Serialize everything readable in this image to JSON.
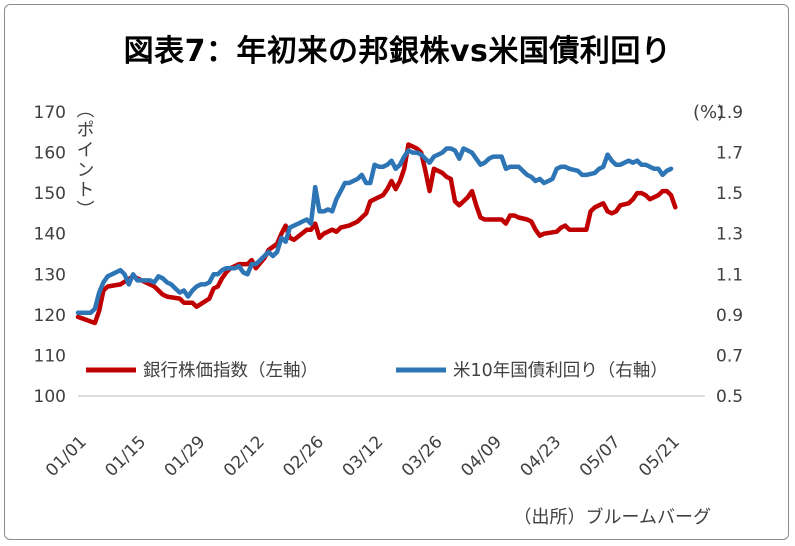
{
  "chart_data": {
    "type": "line",
    "title": "図表7：年初来の邦銀株vs米国債利回り",
    "source": "（出所）ブルームバーグ",
    "y_left": {
      "label": "（ポイント）",
      "ylim": [
        100,
        170
      ],
      "ticks": [
        "170",
        "160",
        "150",
        "140",
        "130",
        "120",
        "110",
        "100"
      ]
    },
    "y_right": {
      "label": "(%)",
      "ylim": [
        0.5,
        1.9
      ],
      "ticks": [
        "1.9",
        "1.7",
        "1.5",
        "1.3",
        "1.1",
        "0.9",
        "0.7",
        "0.5"
      ]
    },
    "x_ticks": [
      "01/01",
      "01/15",
      "01/29",
      "02/12",
      "02/26",
      "03/12",
      "03/26",
      "04/09",
      "04/23",
      "05/07",
      "05/21"
    ],
    "x_range_days": [
      0,
      148
    ],
    "series": [
      {
        "name": "銀行株価指数（左軸）",
        "axis": "left",
        "color": "#C00000",
        "points": [
          [
            0,
            119.5
          ],
          [
            4,
            118.0
          ],
          [
            5,
            121.0
          ],
          [
            6,
            126.0
          ],
          [
            7,
            127.0
          ],
          [
            10,
            127.5
          ],
          [
            13,
            129.5
          ],
          [
            15,
            128.5
          ],
          [
            16,
            128.0
          ],
          [
            17,
            127.5
          ],
          [
            18,
            127.0
          ],
          [
            19,
            126.0
          ],
          [
            20,
            125.0
          ],
          [
            21,
            124.5
          ],
          [
            24,
            124.0
          ],
          [
            25,
            123.0
          ],
          [
            27,
            123.0
          ],
          [
            28,
            122.0
          ],
          [
            31,
            124.0
          ],
          [
            32,
            126.5
          ],
          [
            33,
            127.0
          ],
          [
            34,
            129.0
          ],
          [
            35,
            130.5
          ],
          [
            36,
            131.5
          ],
          [
            38,
            132.5
          ],
          [
            40,
            132.5
          ],
          [
            41,
            133.5
          ],
          [
            42,
            131.5
          ],
          [
            44,
            134.0
          ],
          [
            45,
            136.0
          ],
          [
            47,
            137.5
          ],
          [
            48,
            140.0
          ],
          [
            49,
            142.0
          ],
          [
            50,
            139.0
          ],
          [
            51,
            138.5
          ],
          [
            54,
            141.0
          ],
          [
            55,
            141.0
          ],
          [
            56,
            142.5
          ],
          [
            57,
            139.0
          ],
          [
            58,
            140.0
          ],
          [
            60,
            141.0
          ],
          [
            61,
            140.5
          ],
          [
            62,
            141.5
          ],
          [
            64,
            142.0
          ],
          [
            65,
            142.5
          ],
          [
            66,
            143.0
          ],
          [
            68,
            145.0
          ],
          [
            69,
            148.0
          ],
          [
            70,
            148.5
          ],
          [
            72,
            149.5
          ],
          [
            73,
            151.0
          ],
          [
            74,
            153.0
          ],
          [
            75,
            151.0
          ],
          [
            76,
            153.0
          ],
          [
            77,
            156.0
          ],
          [
            78,
            162.0
          ],
          [
            79,
            161.5
          ],
          [
            80,
            161.0
          ],
          [
            81,
            160.0
          ],
          [
            82,
            155.5
          ],
          [
            83,
            150.5
          ],
          [
            84,
            156.0
          ],
          [
            85,
            155.5
          ],
          [
            86,
            155.0
          ],
          [
            87,
            154.0
          ],
          [
            88,
            153.5
          ],
          [
            89,
            148.0
          ],
          [
            90,
            147.0
          ],
          [
            91,
            148.0
          ],
          [
            92,
            149.0
          ],
          [
            93,
            150.5
          ],
          [
            94,
            147.0
          ],
          [
            95,
            144.0
          ],
          [
            96,
            143.5
          ],
          [
            100,
            143.5
          ],
          [
            101,
            142.5
          ],
          [
            102,
            144.5
          ],
          [
            103,
            144.5
          ],
          [
            104,
            144.0
          ],
          [
            106,
            143.5
          ],
          [
            107,
            143.0
          ],
          [
            108,
            141.0
          ],
          [
            109,
            139.5
          ],
          [
            110,
            140.0
          ],
          [
            113,
            140.5
          ],
          [
            114,
            141.5
          ],
          [
            115,
            142.0
          ],
          [
            116,
            141.0
          ],
          [
            120,
            141.0
          ],
          [
            121,
            145.5
          ],
          [
            122,
            146.5
          ],
          [
            123,
            147.0
          ],
          [
            124,
            147.5
          ],
          [
            125,
            145.5
          ],
          [
            126,
            145.0
          ],
          [
            127,
            145.5
          ],
          [
            128,
            147.0
          ],
          [
            130,
            147.5
          ],
          [
            131,
            148.5
          ],
          [
            132,
            150.0
          ],
          [
            133,
            150.0
          ],
          [
            134,
            149.5
          ],
          [
            135,
            148.5
          ],
          [
            136,
            149.0
          ],
          [
            137,
            149.5
          ],
          [
            138,
            150.5
          ],
          [
            139,
            150.5
          ],
          [
            140,
            149.5
          ],
          [
            141,
            146.5
          ]
        ]
      },
      {
        "name": "米10年国債利回り（右軸）",
        "axis": "right",
        "color": "#2E75B6",
        "points": [
          [
            0,
            0.91
          ],
          [
            3,
            0.91
          ],
          [
            4,
            0.93
          ],
          [
            5,
            1.01
          ],
          [
            6,
            1.06
          ],
          [
            7,
            1.09
          ],
          [
            8,
            1.1
          ],
          [
            10,
            1.12
          ],
          [
            11,
            1.1
          ],
          [
            12,
            1.05
          ],
          [
            13,
            1.1
          ],
          [
            14,
            1.07
          ],
          [
            16,
            1.07
          ],
          [
            17,
            1.07
          ],
          [
            18,
            1.06
          ],
          [
            19,
            1.09
          ],
          [
            20,
            1.08
          ],
          [
            21,
            1.06
          ],
          [
            22,
            1.05
          ],
          [
            23,
            1.03
          ],
          [
            24,
            1.01
          ],
          [
            25,
            1.02
          ],
          [
            26,
            0.99
          ],
          [
            27,
            1.02
          ],
          [
            28,
            1.04
          ],
          [
            29,
            1.05
          ],
          [
            30,
            1.05
          ],
          [
            31,
            1.06
          ],
          [
            32,
            1.1
          ],
          [
            33,
            1.1
          ],
          [
            34,
            1.12
          ],
          [
            35,
            1.13
          ],
          [
            36,
            1.13
          ],
          [
            37,
            1.13
          ],
          [
            38,
            1.14
          ],
          [
            39,
            1.11
          ],
          [
            40,
            1.1
          ],
          [
            41,
            1.15
          ],
          [
            42,
            1.15
          ],
          [
            43,
            1.17
          ],
          [
            44,
            1.19
          ],
          [
            45,
            1.21
          ],
          [
            46,
            1.19
          ],
          [
            47,
            1.21
          ],
          [
            48,
            1.28
          ],
          [
            49,
            1.26
          ],
          [
            50,
            1.33
          ],
          [
            51,
            1.34
          ],
          [
            52,
            1.35
          ],
          [
            53,
            1.36
          ],
          [
            54,
            1.37
          ],
          [
            55,
            1.35
          ],
          [
            56,
            1.53
          ],
          [
            57,
            1.41
          ],
          [
            58,
            1.41
          ],
          [
            59,
            1.42
          ],
          [
            60,
            1.41
          ],
          [
            61,
            1.47
          ],
          [
            62,
            1.51
          ],
          [
            63,
            1.55
          ],
          [
            64,
            1.55
          ],
          [
            66,
            1.57
          ],
          [
            67,
            1.59
          ],
          [
            68,
            1.55
          ],
          [
            69,
            1.55
          ],
          [
            70,
            1.64
          ],
          [
            71,
            1.63
          ],
          [
            72,
            1.63
          ],
          [
            73,
            1.64
          ],
          [
            74,
            1.66
          ],
          [
            75,
            1.62
          ],
          [
            76,
            1.64
          ],
          [
            77,
            1.68
          ],
          [
            78,
            1.71
          ],
          [
            79,
            1.7
          ],
          [
            80,
            1.7
          ],
          [
            81,
            1.69
          ],
          [
            82,
            1.67
          ],
          [
            83,
            1.65
          ],
          [
            84,
            1.68
          ],
          [
            85,
            1.69
          ],
          [
            86,
            1.7
          ],
          [
            87,
            1.72
          ],
          [
            88,
            1.72
          ],
          [
            89,
            1.71
          ],
          [
            90,
            1.67
          ],
          [
            91,
            1.72
          ],
          [
            92,
            1.71
          ],
          [
            93,
            1.7
          ],
          [
            94,
            1.67
          ],
          [
            95,
            1.64
          ],
          [
            96,
            1.65
          ],
          [
            97,
            1.67
          ],
          [
            98,
            1.68
          ],
          [
            99,
            1.68
          ],
          [
            100,
            1.68
          ],
          [
            101,
            1.62
          ],
          [
            102,
            1.63
          ],
          [
            104,
            1.63
          ],
          [
            105,
            1.61
          ],
          [
            106,
            1.59
          ],
          [
            107,
            1.58
          ],
          [
            108,
            1.56
          ],
          [
            109,
            1.57
          ],
          [
            110,
            1.55
          ],
          [
            111,
            1.56
          ],
          [
            112,
            1.57
          ],
          [
            113,
            1.62
          ],
          [
            114,
            1.63
          ],
          [
            115,
            1.63
          ],
          [
            116,
            1.62
          ],
          [
            118,
            1.61
          ],
          [
            119,
            1.59
          ],
          [
            120,
            1.59
          ],
          [
            122,
            1.6
          ],
          [
            123,
            1.62
          ],
          [
            124,
            1.63
          ],
          [
            125,
            1.69
          ],
          [
            126,
            1.66
          ],
          [
            127,
            1.64
          ],
          [
            128,
            1.64
          ],
          [
            129,
            1.65
          ],
          [
            130,
            1.66
          ],
          [
            131,
            1.65
          ],
          [
            132,
            1.66
          ],
          [
            133,
            1.64
          ],
          [
            134,
            1.64
          ],
          [
            135,
            1.63
          ],
          [
            136,
            1.62
          ],
          [
            137,
            1.62
          ],
          [
            138,
            1.59
          ],
          [
            139,
            1.61
          ],
          [
            140,
            1.62
          ]
        ]
      }
    ]
  }
}
